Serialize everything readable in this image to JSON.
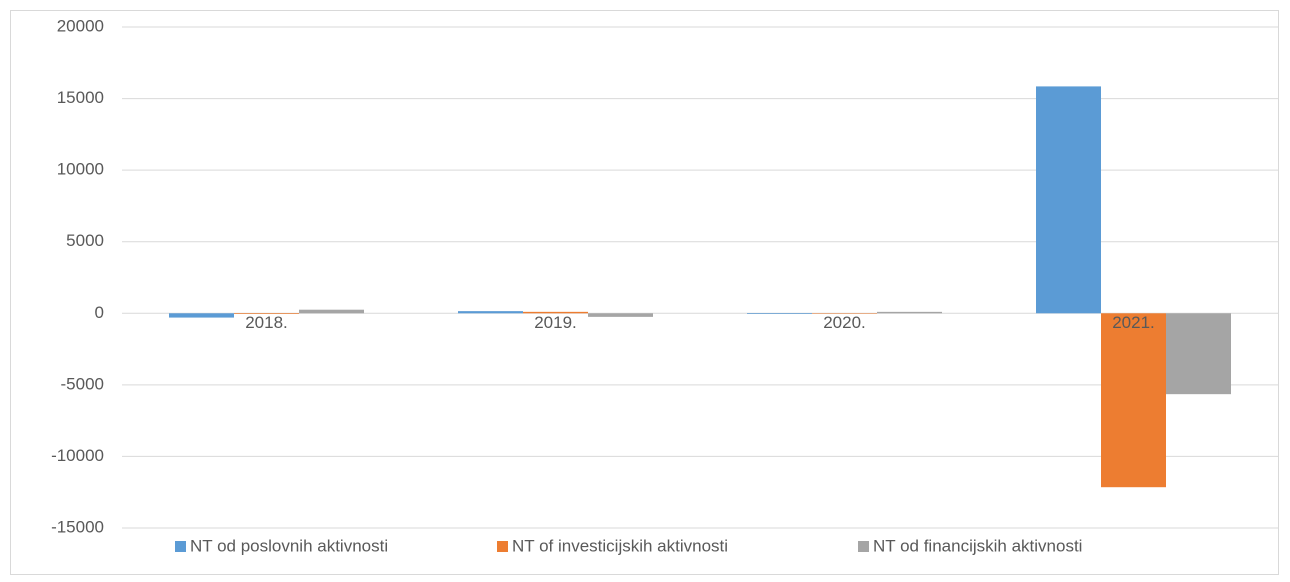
{
  "chart_data": {
    "type": "bar",
    "categories": [
      "2018.",
      "2019.",
      "2020.",
      "2021."
    ],
    "series": [
      {
        "name": "NT od poslovnih aktivnosti",
        "color": "#5b9bd5",
        "values": [
          -300,
          150,
          -50,
          15850
        ]
      },
      {
        "name": "NT of investicijskih aktivnosti",
        "color": "#ed7d31",
        "values": [
          -50,
          100,
          0,
          -12150
        ]
      },
      {
        "name": "NT od financijskih aktivnosti",
        "color": "#a5a5a5",
        "values": [
          250,
          -250,
          100,
          -5650
        ]
      }
    ],
    "ylim": [
      -15000,
      20000
    ],
    "yticks": [
      20000,
      15000,
      10000,
      5000,
      0,
      -5000,
      -10000,
      -15000
    ],
    "grid": true,
    "legend": "bottom"
  }
}
